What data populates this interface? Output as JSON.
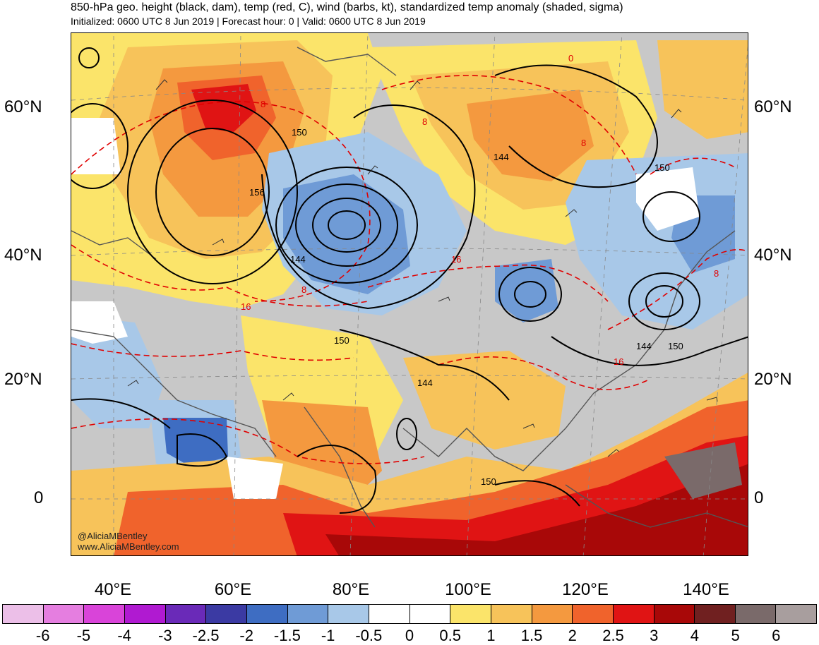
{
  "header": {
    "title": "850-hPa geo. height (black, dam), temp (red, C), wind (barbs, kt), standardized temp anomaly (shaded, sigma)",
    "subtitle": "Initialized: 0600 UTC 8 Jun 2019 | Forecast hour: 0 | Valid: 0600 UTC 8 Jun 2019"
  },
  "map": {
    "lat_labels": [
      "60°N",
      "40°N",
      "20°N",
      "0"
    ],
    "lon_labels": [
      "40°E",
      "60°E",
      "80°E",
      "100°E",
      "120°E",
      "140°E"
    ],
    "height_contour_labels": [
      "150",
      "156",
      "144",
      "150",
      "144",
      "144",
      "150",
      "144",
      "150",
      "150"
    ],
    "temp_contour_labels": [
      "0",
      "8",
      "8",
      "8",
      "16",
      "16",
      "8",
      "8",
      "16"
    ],
    "colors": {
      "height_contours": "#000000",
      "temp_contours": "#e00000",
      "coastlines": "#555555"
    }
  },
  "credits": {
    "handle": "@AliciaMBentley",
    "website": "www.AliciaMBentley.com"
  },
  "colorbar": {
    "colors": [
      "#ecbfe8",
      "#e57ee0",
      "#d944d9",
      "#b01ad1",
      "#6a2ab8",
      "#3b3aa3",
      "#3e6dc2",
      "#6f9bd6",
      "#a8c8e8",
      "#ffffff",
      "#ffffff",
      "#fbe46a",
      "#f7c35a",
      "#f4993f",
      "#f0632c",
      "#e01414",
      "#a80808",
      "#702020",
      "#7a6a6a",
      "#a89e9e"
    ],
    "labels": [
      "-6",
      "-5",
      "-4",
      "-3",
      "-2.5",
      "-2",
      "-1.5",
      "-1",
      "-0.5",
      "0",
      "0.5",
      "1",
      "1.5",
      "2",
      "2.5",
      "3",
      "4",
      "5",
      "6"
    ]
  }
}
